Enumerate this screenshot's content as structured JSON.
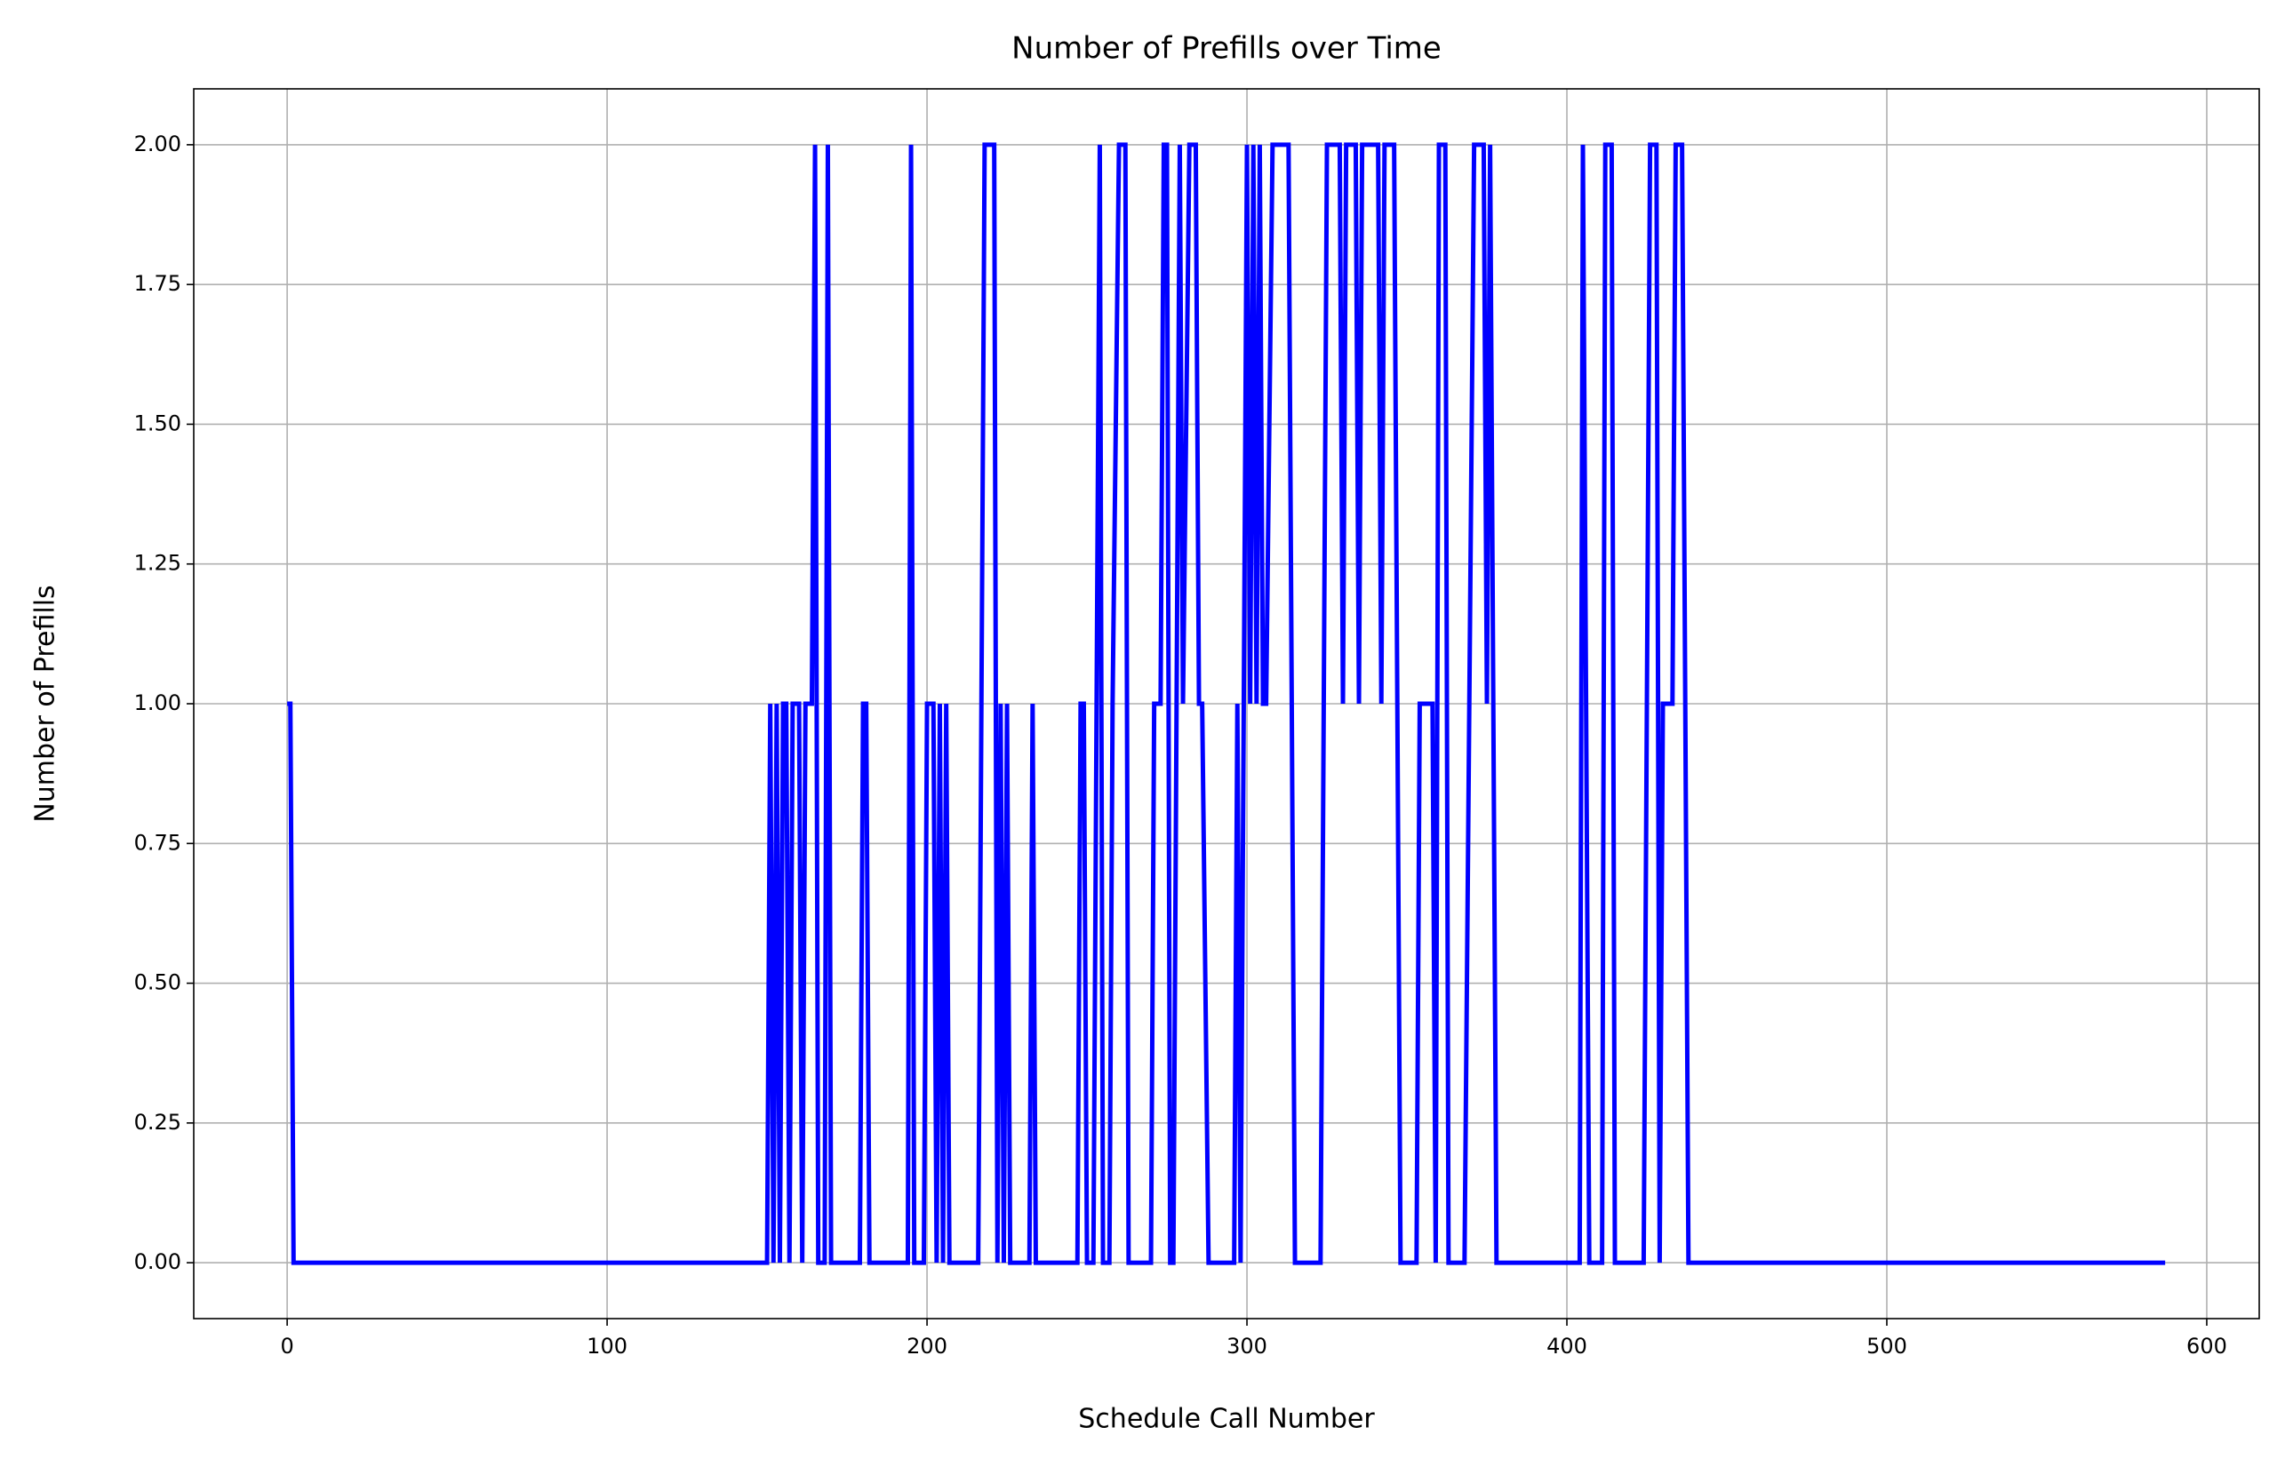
{
  "chart_data": {
    "type": "line",
    "title": "Number of Prefills over Time",
    "x_label": "Schedule Call Number",
    "y_label": "Number of Prefills",
    "x": [
      0,
      1,
      2,
      150,
      151,
      152,
      153,
      154,
      155,
      156,
      157,
      158,
      160,
      161,
      162,
      164,
      165,
      166,
      168,
      169,
      170,
      179,
      180,
      181,
      182,
      194,
      195,
      196,
      199,
      200,
      202,
      203,
      204,
      205,
      206,
      207,
      216,
      218,
      221,
      222,
      223,
      224,
      225,
      226,
      232,
      233,
      234,
      247,
      248,
      249,
      250,
      252,
      254,
      255,
      257,
      258,
      260,
      262,
      263,
      270,
      271,
      273,
      274,
      275,
      276,
      277,
      279,
      280,
      282,
      284,
      285,
      286,
      288,
      296,
      297,
      298,
      300,
      301,
      302,
      303,
      304,
      305,
      306,
      308,
      313,
      314,
      315,
      323,
      325,
      329,
      330,
      331,
      334,
      335,
      336,
      341,
      342,
      343,
      346,
      347,
      348,
      353,
      354,
      358,
      359,
      360,
      362,
      363,
      368,
      371,
      374,
      375,
      376,
      378,
      404,
      405,
      406,
      407,
      411,
      412,
      414,
      415,
      424,
      426,
      428,
      429,
      430,
      433,
      434,
      436,
      437,
      438,
      587
    ],
    "series": [
      {
        "name": "Number of Prefills",
        "color": "#0000ff",
        "values": [
          1,
          1,
          0,
          0,
          1,
          0,
          1,
          0,
          1,
          1,
          0,
          1,
          1,
          0,
          1,
          1,
          2,
          0,
          0,
          2,
          0,
          0,
          1,
          1,
          0,
          0,
          2,
          0,
          0,
          1,
          1,
          0,
          1,
          0,
          1,
          0,
          0,
          2,
          2,
          0,
          1,
          0,
          1,
          0,
          0,
          1,
          0,
          0,
          1,
          1,
          0,
          0,
          2,
          0,
          0,
          1,
          2,
          2,
          0,
          0,
          1,
          1,
          2,
          2,
          0,
          0,
          2,
          1,
          2,
          2,
          1,
          1,
          0,
          0,
          1,
          0,
          2,
          1,
          2,
          1,
          2,
          1,
          1,
          2,
          2,
          1,
          0,
          0,
          2,
          2,
          1,
          2,
          2,
          1,
          2,
          2,
          1,
          2,
          2,
          1,
          0,
          0,
          1,
          1,
          0,
          2,
          2,
          0,
          0,
          2,
          2,
          1,
          2,
          0,
          0,
          2,
          1,
          0,
          0,
          2,
          2,
          0,
          0,
          2,
          2,
          0,
          1,
          1,
          2,
          2,
          1,
          0,
          0
        ]
      }
    ],
    "xlim": [
      -29.2,
      616.4
    ],
    "ylim": [
      -0.1,
      2.1
    ],
    "xticks": [
      0,
      100,
      200,
      300,
      400,
      500,
      600
    ],
    "yticks": [
      {
        "value": 0,
        "label": "0.00"
      },
      {
        "value": 0.25,
        "label": "0.25"
      },
      {
        "value": 0.5,
        "label": "0.50"
      },
      {
        "value": 0.75,
        "label": "0.75"
      },
      {
        "value": 1,
        "label": "1.00"
      },
      {
        "value": 1.25,
        "label": "1.25"
      },
      {
        "value": 1.5,
        "label": "1.50"
      },
      {
        "value": 1.75,
        "label": "1.75"
      },
      {
        "value": 2,
        "label": "2.00"
      }
    ],
    "grid": true
  }
}
